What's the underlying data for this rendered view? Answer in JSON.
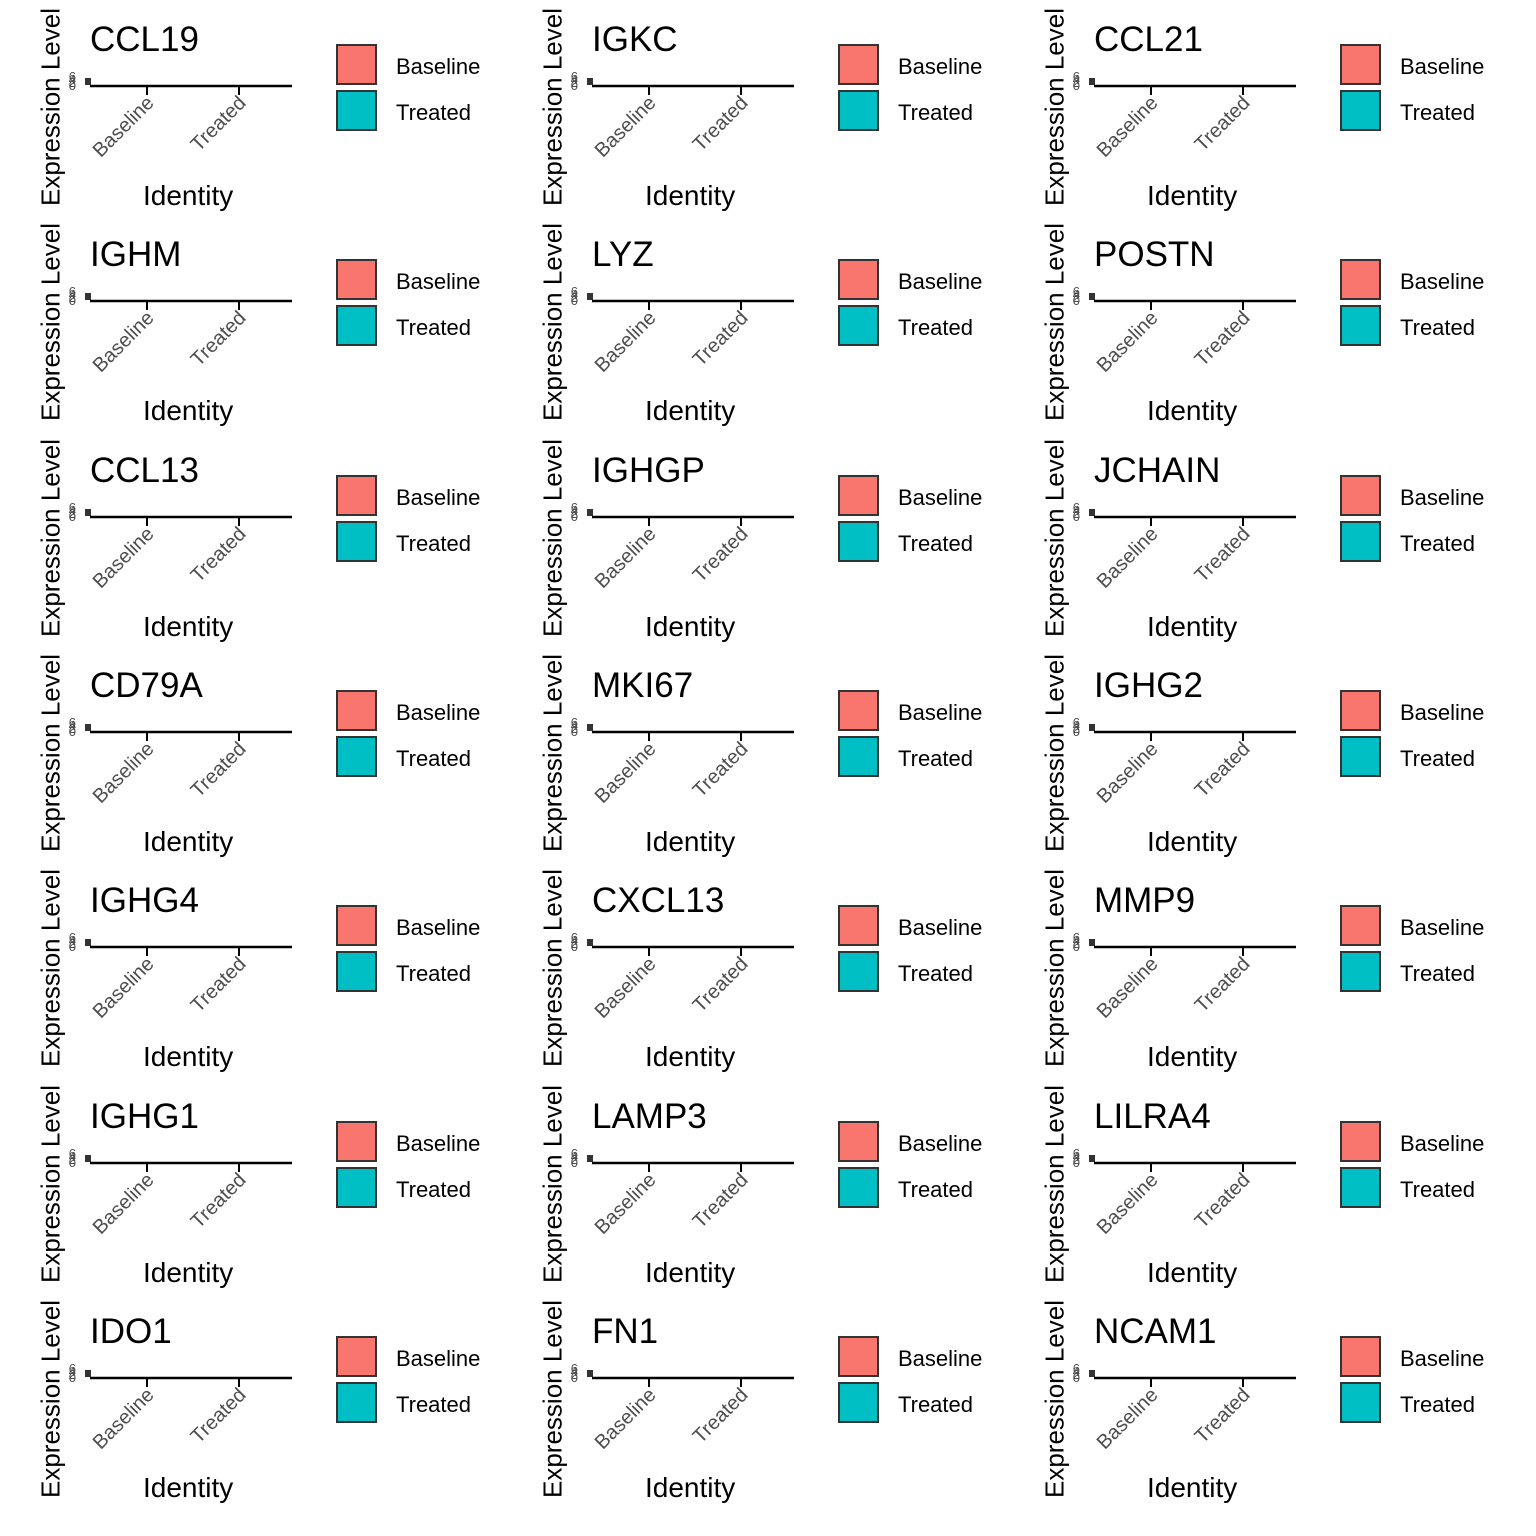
{
  "chart_data": {
    "type": "violin",
    "xlabel": "Identity",
    "ylabel": "Expression Level",
    "categories": [
      "Baseline",
      "Treated"
    ],
    "y_tick_labels": [
      "6",
      "4",
      "2",
      "0"
    ],
    "legend": {
      "placement": "right",
      "entries": [
        {
          "label": "Baseline",
          "color": "#F8766D"
        },
        {
          "label": "Treated",
          "color": "#00BFC4"
        }
      ]
    },
    "panels": [
      {
        "title": "CCL19"
      },
      {
        "title": "IGKC"
      },
      {
        "title": "CCL21"
      },
      {
        "title": "IGHM"
      },
      {
        "title": "LYZ"
      },
      {
        "title": "POSTN"
      },
      {
        "title": "CCL13"
      },
      {
        "title": "IGHGP"
      },
      {
        "title": "JCHAIN"
      },
      {
        "title": "CD79A"
      },
      {
        "title": "MKI67"
      },
      {
        "title": "IGHG2"
      },
      {
        "title": "IGHG4"
      },
      {
        "title": "CXCL13"
      },
      {
        "title": "MMP9"
      },
      {
        "title": "IGHG1"
      },
      {
        "title": "LAMP3"
      },
      {
        "title": "LILRA4"
      },
      {
        "title": "IDO1"
      },
      {
        "title": "FN1"
      },
      {
        "title": "NCAM1"
      }
    ]
  }
}
